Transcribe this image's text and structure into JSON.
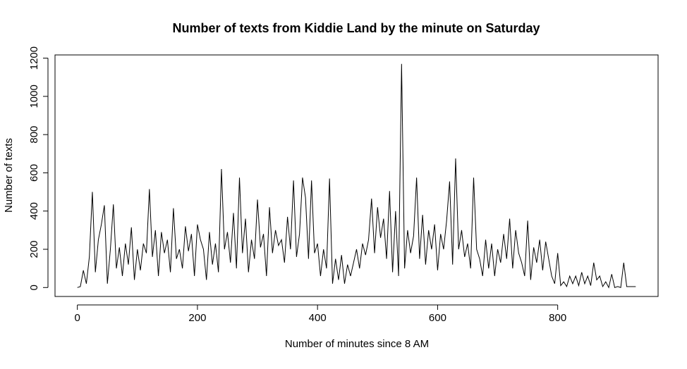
{
  "chart_data": {
    "type": "line",
    "title": "Number of texts from Kiddie Land by the minute on Saturday",
    "x_label": "Number of minutes since 8 AM",
    "y_label": "Number of texts",
    "color": "#000000",
    "xlim": [
      -37.2,
      967.2
    ],
    "ylim": [
      -46.8,
      1216.8
    ],
    "xticks": [
      0,
      200,
      400,
      600,
      800
    ],
    "yticks": [
      0,
      200,
      400,
      600,
      800,
      1000,
      1200
    ],
    "x": [
      0,
      5,
      10,
      15,
      20,
      25,
      30,
      35,
      40,
      45,
      50,
      55,
      60,
      65,
      70,
      75,
      80,
      85,
      90,
      95,
      100,
      105,
      110,
      115,
      120,
      125,
      130,
      135,
      140,
      145,
      150,
      155,
      160,
      165,
      170,
      175,
      180,
      185,
      190,
      195,
      200,
      205,
      210,
      215,
      220,
      225,
      230,
      235,
      240,
      245,
      250,
      255,
      260,
      265,
      270,
      275,
      280,
      285,
      290,
      295,
      300,
      305,
      310,
      315,
      320,
      325,
      330,
      335,
      340,
      345,
      350,
      355,
      360,
      365,
      370,
      375,
      380,
      385,
      390,
      395,
      400,
      405,
      410,
      415,
      420,
      425,
      430,
      435,
      440,
      445,
      450,
      455,
      460,
      465,
      470,
      475,
      480,
      485,
      490,
      495,
      500,
      505,
      510,
      515,
      520,
      525,
      530,
      535,
      540,
      545,
      550,
      555,
      560,
      565,
      570,
      575,
      580,
      585,
      590,
      595,
      600,
      605,
      610,
      615,
      620,
      625,
      630,
      635,
      640,
      645,
      650,
      655,
      660,
      665,
      670,
      675,
      680,
      685,
      690,
      695,
      700,
      705,
      710,
      715,
      720,
      725,
      730,
      735,
      740,
      745,
      750,
      755,
      760,
      765,
      770,
      775,
      780,
      785,
      790,
      795,
      800,
      805,
      810,
      815,
      820,
      825,
      830,
      835,
      840,
      845,
      850,
      855,
      860,
      865,
      870,
      875,
      880,
      885,
      890,
      895,
      900,
      905,
      910,
      915,
      920,
      925,
      930
    ],
    "values": [
      0,
      5,
      90,
      20,
      160,
      500,
      80,
      250,
      330,
      430,
      20,
      200,
      435,
      100,
      210,
      60,
      230,
      120,
      315,
      40,
      200,
      90,
      230,
      180,
      515,
      160,
      300,
      60,
      290,
      180,
      250,
      80,
      415,
      150,
      200,
      100,
      320,
      190,
      280,
      60,
      330,
      250,
      200,
      40,
      290,
      120,
      230,
      80,
      620,
      200,
      290,
      130,
      390,
      100,
      575,
      180,
      360,
      80,
      250,
      150,
      460,
      210,
      280,
      60,
      420,
      180,
      300,
      220,
      250,
      130,
      370,
      200,
      560,
      160,
      280,
      575,
      470,
      150,
      560,
      180,
      230,
      60,
      200,
      100,
      570,
      20,
      150,
      40,
      170,
      20,
      120,
      60,
      130,
      200,
      100,
      230,
      170,
      250,
      465,
      180,
      420,
      260,
      360,
      150,
      505,
      80,
      400,
      60,
      1170,
      100,
      300,
      180,
      270,
      575,
      150,
      380,
      120,
      300,
      200,
      330,
      90,
      280,
      200,
      350,
      555,
      120,
      675,
      200,
      300,
      160,
      230,
      100,
      575,
      200,
      150,
      60,
      250,
      100,
      230,
      60,
      200,
      130,
      280,
      150,
      360,
      100,
      300,
      180,
      130,
      60,
      350,
      40,
      210,
      130,
      250,
      90,
      240,
      150,
      60,
      20,
      180,
      10,
      30,
      5,
      60,
      20,
      60,
      10,
      80,
      20,
      60,
      10,
      130,
      40,
      60,
      5,
      30,
      0,
      70,
      0,
      5,
      0,
      130,
      5,
      5,
      5,
      5
    ]
  }
}
